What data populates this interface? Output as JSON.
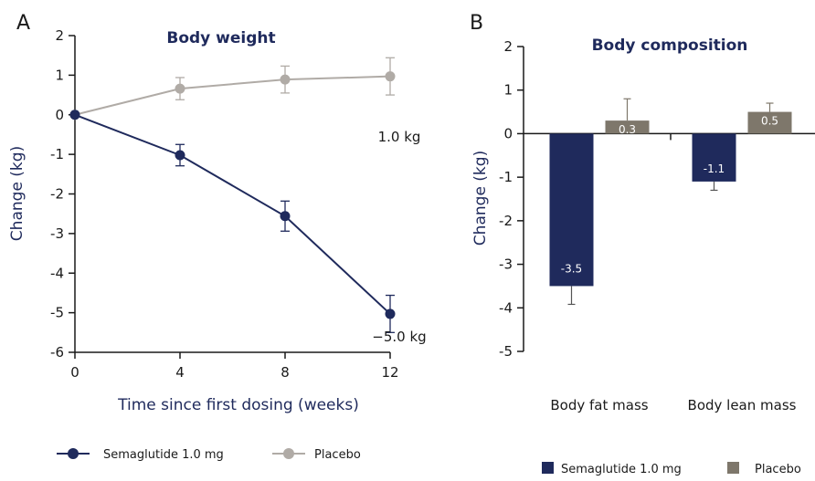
{
  "chart_data": [
    {
      "panel": "A",
      "type": "line",
      "title": "Body weight",
      "xlabel": "Time since first dosing (weeks)",
      "ylabel": "Change (kg)",
      "x": [
        0,
        4,
        8,
        12
      ],
      "xlim": [
        0,
        12
      ],
      "ylim": [
        -6,
        2
      ],
      "xticks": [
        "0",
        "4",
        "8",
        "12"
      ],
      "yticks": [
        "2",
        "1",
        "0",
        "-1",
        "-2",
        "-3",
        "-4",
        "-5",
        "-6"
      ],
      "grid": false,
      "legend": "bottom",
      "series": [
        {
          "name": "Semaglutide 1.0 mg",
          "color": "#1f2a5c",
          "values": [
            0,
            -1.02,
            -2.56,
            -5.03
          ],
          "err_low": [
            0,
            0.27,
            0.38,
            0.47
          ],
          "err_high": [
            0,
            0.27,
            0.38,
            0.47
          ]
        },
        {
          "name": "Placebo",
          "color": "#b0aba6",
          "values": [
            0,
            0.66,
            0.89,
            0.97
          ],
          "err_low": [
            0,
            0.28,
            0.34,
            0.47
          ],
          "err_high": [
            0,
            0.28,
            0.34,
            0.47
          ]
        }
      ],
      "annotations": [
        {
          "text": "1.0 kg",
          "x": 12,
          "y": 0.97
        },
        {
          "text": "−5.0 kg",
          "x": 12,
          "y": -5.03
        }
      ]
    },
    {
      "panel": "B",
      "type": "bar",
      "title": "Body composition",
      "xlabel": "",
      "ylabel": "Change (kg)",
      "ylim": [
        -5,
        2
      ],
      "yticks": [
        "2",
        "1",
        "0",
        "-1",
        "-2",
        "-3",
        "-4",
        "-5"
      ],
      "grid": false,
      "legend": "bottom",
      "categories": [
        "Body fat mass",
        "Body lean mass"
      ],
      "series": [
        {
          "name": "Semaglutide 1.0 mg",
          "color": "#1f2a5c",
          "values": [
            -3.5,
            -1.1
          ],
          "labels": [
            "-3.5",
            "-1.1"
          ],
          "err": [
            0.42,
            0.2
          ]
        },
        {
          "name": "Placebo",
          "color": "#7e776b",
          "values": [
            0.3,
            0.5
          ],
          "labels": [
            "0.3",
            "0.5"
          ],
          "err": [
            0.5,
            0.2
          ]
        }
      ]
    }
  ]
}
